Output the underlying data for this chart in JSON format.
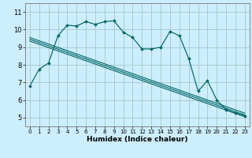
{
  "title": "",
  "xlabel": "Humidex (Indice chaleur)",
  "bg_color": "#cceeff",
  "grid_color": "#aacccc",
  "line_color": "#006666",
  "xlim": [
    -0.5,
    23.5
  ],
  "ylim": [
    4.5,
    11.5
  ],
  "xticks": [
    0,
    1,
    2,
    3,
    4,
    5,
    6,
    7,
    8,
    9,
    10,
    11,
    12,
    13,
    14,
    15,
    16,
    17,
    18,
    19,
    20,
    21,
    22,
    23
  ],
  "yticks": [
    5,
    6,
    7,
    8,
    9,
    10,
    11
  ],
  "series1_x": [
    0,
    1,
    2,
    3,
    4,
    5,
    6,
    7,
    8,
    9,
    10,
    11,
    12,
    13,
    14,
    15,
    16,
    17,
    18,
    19,
    20,
    21,
    22,
    23
  ],
  "series1_y": [
    6.8,
    7.75,
    8.1,
    9.65,
    10.25,
    10.2,
    10.45,
    10.3,
    10.45,
    10.5,
    9.85,
    9.55,
    8.9,
    8.9,
    9.0,
    9.9,
    9.65,
    8.35,
    6.5,
    7.1,
    6.0,
    5.45,
    5.25,
    5.1
  ],
  "regression_lines": [
    {
      "x0": 0,
      "y0": 9.55,
      "x1": 23,
      "y1": 5.25
    },
    {
      "x0": 0,
      "y0": 9.45,
      "x1": 23,
      "y1": 5.15
    },
    {
      "x0": 0,
      "y0": 9.35,
      "x1": 23,
      "y1": 5.05
    }
  ]
}
